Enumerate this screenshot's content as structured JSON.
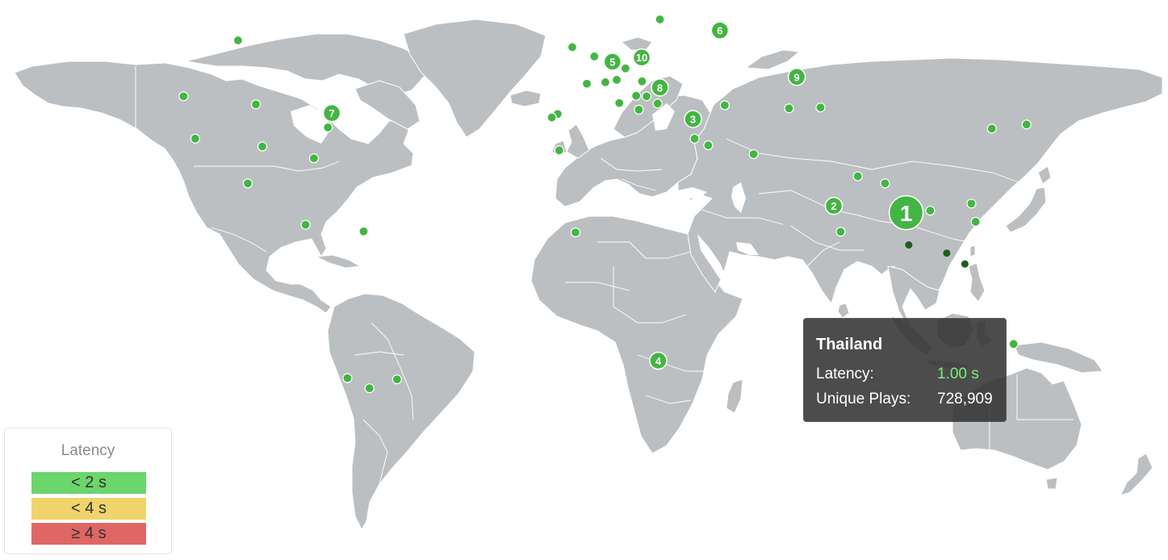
{
  "legend": {
    "title": "Latency",
    "items": [
      {
        "label": "< 2 s",
        "color": "#6bd66b"
      },
      {
        "label": "< 4 s",
        "color": "#f0d46a"
      },
      {
        "label": "≥ 4 s",
        "color": "#e06666"
      }
    ]
  },
  "tooltip": {
    "country": "Thailand",
    "latency_label": "Latency:",
    "latency_value": "1.00 s",
    "latency_color": "#7cf07c",
    "plays_label": "Unique Plays:",
    "plays_value": "728,909"
  },
  "map": {
    "land_color": "#bcbfc2",
    "marker_color": "#43b543",
    "ranked": [
      {
        "rank": "1",
        "country": "Thailand",
        "lon": 100.9,
        "lat": 13.5,
        "highlighted": true
      },
      {
        "rank": "2",
        "country": "India",
        "lon": 78.6,
        "lat": 15.5
      },
      {
        "rank": "3",
        "country": "Turkey",
        "lon": 35.2,
        "lat": 38.8
      },
      {
        "rank": "4",
        "country": "South Africa",
        "lon": 24.5,
        "lat": -30.0
      },
      {
        "rank": "5",
        "country": "Germany",
        "lon": 10.4,
        "lat": 51.1
      },
      {
        "rank": "6",
        "country": "Russia",
        "lon": 43.5,
        "lat": 56.7
      },
      {
        "rank": "7",
        "country": "United States",
        "lon": -76.1,
        "lat": 40.2
      },
      {
        "rank": "8",
        "country": "Romania",
        "lon": 25.0,
        "lat": 45.9
      },
      {
        "rank": "9",
        "country": "Kazakhstan",
        "lon": 67.2,
        "lat": 48.1
      },
      {
        "rank": "10",
        "country": "Poland",
        "lon": 19.4,
        "lat": 51.9
      }
    ],
    "points": [
      {
        "lon": -105.0,
        "lat": 55.0
      },
      {
        "lon": -121.8,
        "lat": 44.0
      },
      {
        "lon": -99.5,
        "lat": 42.2
      },
      {
        "lon": -118.2,
        "lat": 34.0
      },
      {
        "lon": -97.5,
        "lat": 32.0
      },
      {
        "lon": -77.3,
        "lat": 36.8
      },
      {
        "lon": -81.6,
        "lat": 28.9
      },
      {
        "lon": -102.0,
        "lat": 22.0
      },
      {
        "lon": -84.2,
        "lat": 9.9
      },
      {
        "lon": -66.3,
        "lat": 7.9
      },
      {
        "lon": -71.3,
        "lat": -34.5
      },
      {
        "lon": -64.5,
        "lat": -37.0
      },
      {
        "lon": -56.0,
        "lat": -34.8
      },
      {
        "lon": -2.0,
        "lat": 53.8
      },
      {
        "lon": -6.5,
        "lat": 40.0
      },
      {
        "lon": -8.3,
        "lat": 39.2
      },
      {
        "lon": -6.0,
        "lat": 31.0
      },
      {
        "lon": -1.0,
        "lat": 7.6
      },
      {
        "lon": 2.5,
        "lat": 46.7
      },
      {
        "lon": 4.8,
        "lat": 52.1
      },
      {
        "lon": 8.2,
        "lat": 47.0
      },
      {
        "lon": 11.7,
        "lat": 47.5
      },
      {
        "lon": 14.4,
        "lat": 49.8
      },
      {
        "lon": 19.5,
        "lat": 47.2
      },
      {
        "lon": 12.5,
        "lat": 42.5
      },
      {
        "lon": 17.7,
        "lat": 44.1
      },
      {
        "lon": 20.9,
        "lat": 44.0
      },
      {
        "lon": 24.3,
        "lat": 42.4
      },
      {
        "lon": 18.5,
        "lat": 41.0
      },
      {
        "lon": 25.0,
        "lat": 58.5
      },
      {
        "lon": 45.0,
        "lat": 42.0
      },
      {
        "lon": 35.7,
        "lat": 34.0
      },
      {
        "lon": 39.9,
        "lat": 32.3
      },
      {
        "lon": 53.9,
        "lat": 30.0
      },
      {
        "lon": 64.8,
        "lat": 41.3
      },
      {
        "lon": 74.5,
        "lat": 41.5
      },
      {
        "lon": 94.4,
        "lat": 22.0
      },
      {
        "lon": 108.3,
        "lat": 14.1
      },
      {
        "lon": 121.0,
        "lat": 16.2
      },
      {
        "lon": 122.3,
        "lat": 10.8
      },
      {
        "lon": 127.3,
        "lat": 36.5
      },
      {
        "lon": 138.0,
        "lat": 37.5
      },
      {
        "lon": 134.0,
        "lat": -25.5
      },
      {
        "lon": 80.7,
        "lat": 7.8
      },
      {
        "lon": 86.0,
        "lat": 24.0
      }
    ],
    "dim_points": [
      {
        "lon": 101.7,
        "lat": 3.8
      },
      {
        "lon": 113.4,
        "lat": 1.3
      },
      {
        "lon": 119.0,
        "lat": -2.0
      }
    ]
  }
}
